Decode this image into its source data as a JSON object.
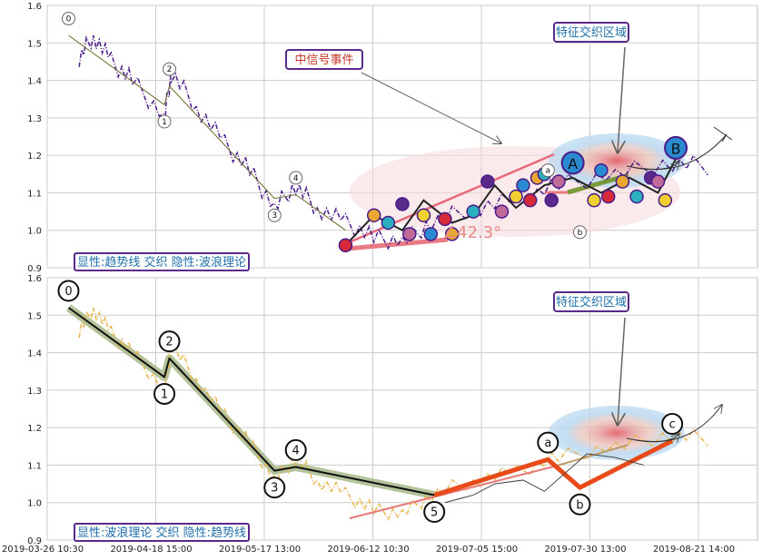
{
  "chart_data": [
    {
      "type": "line",
      "panel": "top",
      "ylim": [
        0.9,
        1.6
      ],
      "yticks": [
        "0.9",
        "1.0",
        "1.1",
        "1.2",
        "1.3",
        "1.4",
        "1.5",
        "1.6"
      ],
      "grid": true,
      "colors": {
        "price": "#4b1a8a",
        "trendline": "#5a5a2a",
        "channel_upper": "#e86a7a",
        "channel_lower": "#e86a7a",
        "projection": "#7a9a3a"
      },
      "wave_labels": [
        {
          "label": "0",
          "x": 0.03,
          "y": 1.565
        },
        {
          "label": "1",
          "x": 0.165,
          "y": 1.29
        },
        {
          "label": "2",
          "x": 0.172,
          "y": 1.43
        },
        {
          "label": "3",
          "x": 0.32,
          "y": 1.04
        },
        {
          "label": "4",
          "x": 0.35,
          "y": 1.14
        },
        {
          "label": "a",
          "x": 0.705,
          "y": 1.16
        },
        {
          "label": "b",
          "x": 0.75,
          "y": 0.995
        }
      ],
      "markers": [
        {
          "label": "A",
          "x": 0.74,
          "y": 1.18
        },
        {
          "label": "B",
          "x": 0.885,
          "y": 1.22
        }
      ],
      "annotations": [
        "中信号事件",
        "特征交织区域"
      ],
      "angle_label": "∠42.3°",
      "legend_text": "显性:趋势线 交织 隐性:波浪理论"
    },
    {
      "type": "line",
      "panel": "bottom",
      "ylim": [
        0.9,
        1.6
      ],
      "yticks": [
        "0.9",
        "1.0",
        "1.1",
        "1.2",
        "1.3",
        "1.4",
        "1.5",
        "1.6"
      ],
      "grid": true,
      "colors": {
        "price": "#e8b54a",
        "wave": "#111111",
        "wave_band": "#8aa86a",
        "abc": "#e84a1a",
        "lower_line": "#e87a7a"
      },
      "wave_labels": [
        {
          "label": "0",
          "x": 0.03,
          "y": 1.565
        },
        {
          "label": "1",
          "x": 0.165,
          "y": 1.29
        },
        {
          "label": "2",
          "x": 0.172,
          "y": 1.43
        },
        {
          "label": "3",
          "x": 0.32,
          "y": 1.04
        },
        {
          "label": "4",
          "x": 0.35,
          "y": 1.14
        },
        {
          "label": "5",
          "x": 0.545,
          "y": 0.975
        },
        {
          "label": "a",
          "x": 0.705,
          "y": 1.16
        },
        {
          "label": "b",
          "x": 0.75,
          "y": 0.995
        },
        {
          "label": "c",
          "x": 0.88,
          "y": 1.21
        }
      ],
      "annotations": [
        "特征交织区域"
      ],
      "legend_text": "显性:波浪理论 交织 隐性:趋势线",
      "x_ticks": [
        "2019-03-26 10:30",
        "2019-04-18 15:00",
        "2019-05-17 13:00",
        "2019-06-12 10:30",
        "2019-07-05 15:00",
        "2019-07-30 13:00",
        "2019-08-21 14:00"
      ]
    }
  ]
}
